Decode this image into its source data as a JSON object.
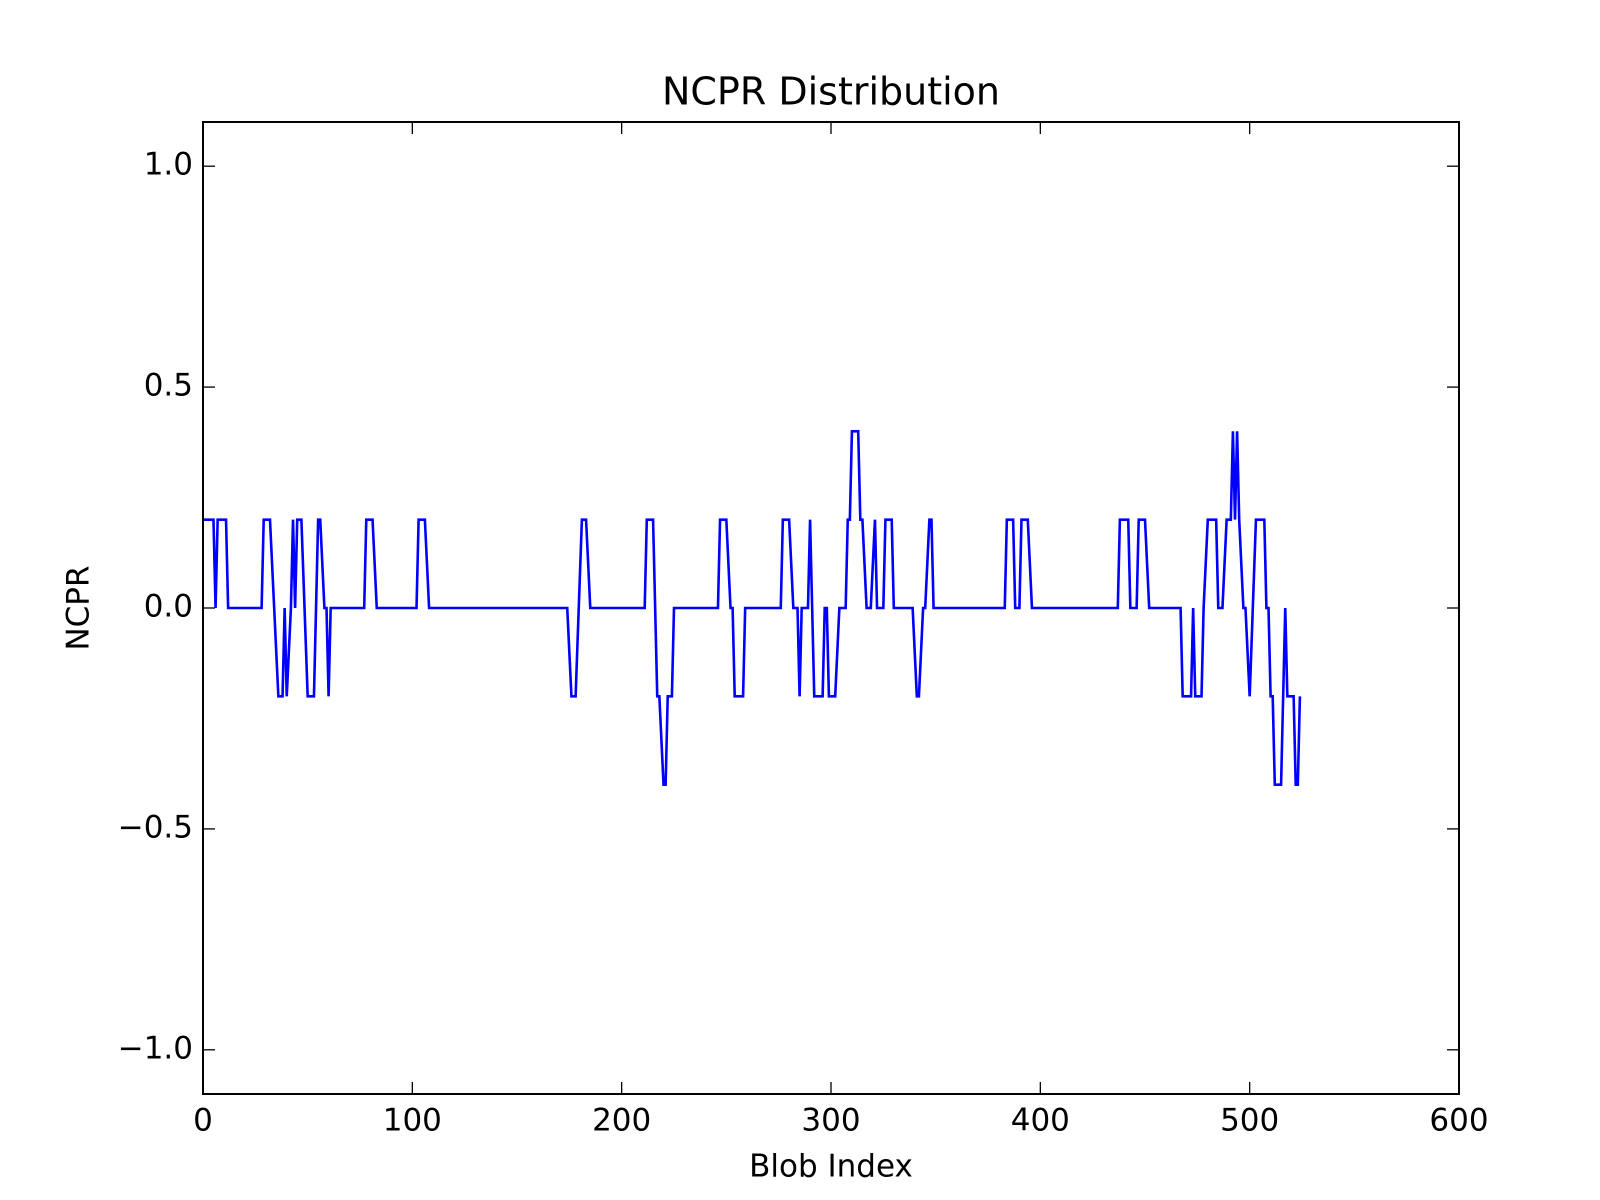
{
  "chart_data": {
    "type": "line",
    "title": "NCPR Distribution",
    "x_label": "Blob Index",
    "y_label": "NCPR",
    "x": [
      0,
      5,
      6,
      7,
      11,
      12,
      28,
      29,
      32,
      34,
      36,
      38,
      39,
      40,
      42,
      43,
      44,
      45,
      47,
      50,
      53,
      55,
      56,
      58,
      59,
      60,
      61,
      77,
      78,
      81,
      83,
      102,
      103,
      106,
      108,
      174,
      176,
      178,
      181,
      183,
      185,
      211,
      212,
      215,
      217,
      218,
      220,
      221,
      222,
      224,
      225,
      246,
      247,
      250,
      252,
      253,
      254,
      258,
      259,
      276,
      277,
      280,
      282,
      284,
      285,
      286,
      289,
      290,
      292,
      296,
      297,
      298,
      299,
      302,
      304,
      307,
      308,
      309,
      310,
      313,
      314,
      315,
      317,
      319,
      321,
      322,
      325,
      326,
      329,
      330,
      339,
      341,
      342,
      344,
      345,
      347,
      348,
      349,
      383,
      384,
      387,
      388,
      390,
      391,
      394,
      396,
      437,
      438,
      442,
      443,
      446,
      447,
      450,
      452,
      467,
      468,
      472,
      473,
      474,
      477,
      478,
      480,
      484,
      485,
      487,
      489,
      491,
      492,
      493,
      494,
      495,
      497,
      498,
      500,
      503,
      507,
      508,
      509,
      510,
      511,
      512,
      515,
      516,
      517,
      518,
      521,
      522,
      523,
      524
    ],
    "values": [
      0.2,
      0.2,
      0,
      0.2,
      0.2,
      0,
      0,
      0.2,
      0.2,
      0,
      -0.2,
      -0.2,
      0,
      -0.2,
      0,
      0.2,
      0,
      0.2,
      0.2,
      -0.2,
      -0.2,
      0.2,
      0.2,
      0,
      0,
      -0.2,
      0,
      0,
      0.2,
      0.2,
      0,
      0,
      0.2,
      0.2,
      0,
      0,
      -0.2,
      -0.2,
      0.2,
      0.2,
      0,
      0,
      0.2,
      0.2,
      -0.2,
      -0.2,
      -0.4,
      -0.4,
      -0.2,
      -0.2,
      0,
      0,
      0.2,
      0.2,
      0,
      0,
      -0.2,
      -0.2,
      0,
      0,
      0.2,
      0.2,
      0,
      0,
      -0.2,
      0,
      0,
      0.2,
      -0.2,
      -0.2,
      0,
      0,
      -0.2,
      -0.2,
      0,
      0,
      0.2,
      0.2,
      0.4,
      0.4,
      0.2,
      0.2,
      0,
      0,
      0.2,
      0,
      0,
      0.2,
      0.2,
      0,
      0,
      -0.2,
      -0.2,
      0,
      0,
      0.2,
      0.2,
      0,
      0,
      0.2,
      0.2,
      0,
      0,
      0.2,
      0.2,
      0,
      0,
      0.2,
      0.2,
      0,
      0,
      0.2,
      0.2,
      0,
      0,
      -0.2,
      -0.2,
      0,
      -0.2,
      -0.2,
      0,
      0.2,
      0.2,
      0,
      0,
      0.2,
      0.2,
      0.4,
      0.2,
      0.4,
      0.2,
      0,
      0,
      -0.2,
      0.2,
      0.2,
      0,
      0,
      -0.2,
      -0.2,
      -0.4,
      -0.4,
      -0.2,
      0,
      -0.2,
      -0.2,
      -0.4,
      -0.4,
      -0.2
    ],
    "color": "#0000ff",
    "xlim": [
      0,
      600
    ],
    "xticks": [
      0,
      100,
      200,
      300,
      400,
      500,
      600
    ],
    "ylim": [
      -1.1,
      1.1
    ],
    "yticks": [
      {
        "value": -1,
        "label": "−1.0"
      },
      {
        "value": -0.5,
        "label": "−0.5"
      },
      {
        "value": 0,
        "label": "0.0"
      },
      {
        "value": 0.5,
        "label": "0.5"
      },
      {
        "value": 1,
        "label": "1.0"
      }
    ]
  }
}
